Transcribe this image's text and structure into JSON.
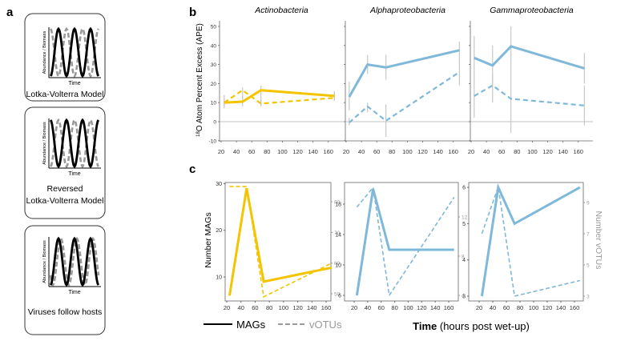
{
  "panel_labels": {
    "a": "a",
    "b": "b",
    "c": "c"
  },
  "colors": {
    "actino": "#F5C400",
    "proteo": "#7FB8D9",
    "error": "#C8C8C8",
    "axis": "#555555",
    "right_axis": "#999999"
  },
  "panel_a": {
    "boxes": [
      {
        "caption": [
          "Lotka-Volterra Model"
        ],
        "solid_phase": 0,
        "dashed_phase": 0.5
      },
      {
        "caption": [
          "Reversed",
          "Lotka-Volterra Model"
        ],
        "solid_phase": 0.5,
        "dashed_phase": 0
      },
      {
        "caption": [
          "Viruses follow hosts"
        ],
        "solid_phase": 0,
        "dashed_phase": 0.15
      }
    ],
    "ylabel": "Abundance / Biomass",
    "xlabel": "Time"
  },
  "chart_data": [
    {
      "id": "b",
      "type": "line",
      "ylabel": "18O Atom Percent Excess (APE)",
      "ylabel_sup": "18",
      "ylabel_rest": "O Atom Percent Excess (APE)",
      "ylim": [
        -10,
        52
      ],
      "yticks": [
        -10,
        0,
        10,
        20,
        30,
        40,
        50
      ],
      "xlim": [
        18,
        178
      ],
      "xticks": [
        20,
        40,
        60,
        80,
        100,
        120,
        140,
        160
      ],
      "panels": [
        {
          "title": "Actinobacteria",
          "color": "actino",
          "series": [
            {
              "name": "MAGs",
              "style": "solid",
              "x": [
                24,
                48,
                72,
                168
              ],
              "y": [
                10,
                10.5,
                16.5,
                13.5
              ],
              "err_low": [
                7,
                8,
                8,
                11
              ],
              "err_high": [
                14,
                13,
                19,
                16
              ]
            },
            {
              "name": "vOTUs",
              "style": "dashed",
              "x": [
                24,
                48,
                72,
                168
              ],
              "y": [
                10,
                16.5,
                9.5,
                12.5
              ],
              "err_low": [
                8,
                12,
                8,
                11
              ],
              "err_high": [
                12,
                18,
                12,
                15
              ]
            }
          ]
        },
        {
          "title": "Alphaproteobacteria",
          "color": "proteo",
          "series": [
            {
              "name": "MAGs",
              "style": "solid",
              "x": [
                24,
                48,
                72,
                168
              ],
              "y": [
                13,
                30,
                28.5,
                37.5
              ],
              "err_low": [
                6,
                25,
                22,
                31
              ],
              "err_high": [
                21,
                35,
                35,
                42
              ]
            },
            {
              "name": "vOTUs",
              "style": "dashed",
              "x": [
                24,
                48,
                72,
                168
              ],
              "y": [
                -0.5,
                8,
                0.5,
                26
              ],
              "err_low": [
                -2,
                5,
                -8,
                19
              ],
              "err_high": [
                2,
                10,
                9,
                32
              ]
            }
          ]
        },
        {
          "title": "Gammaproteobacteria",
          "color": "proteo",
          "series": [
            {
              "name": "MAGs",
              "style": "solid",
              "x": [
                24,
                48,
                72,
                168
              ],
              "y": [
                33.5,
                29.5,
                39.5,
                28
              ],
              "err_low": [
                20,
                20,
                20,
                20
              ],
              "err_high": [
                45,
                40,
                50,
                36
              ]
            },
            {
              "name": "vOTUs",
              "style": "dashed",
              "x": [
                24,
                48,
                72,
                168
              ],
              "y": [
                13.5,
                19,
                12,
                8.5
              ],
              "err_low": [
                2,
                10,
                -6,
                -2
              ],
              "err_high": [
                20,
                25,
                20,
                19
              ]
            }
          ]
        }
      ]
    },
    {
      "id": "c",
      "type": "line",
      "ylabel_left": "Number MAGs",
      "ylabel_right": "Number vOTUs",
      "xlabel_bold": "Time",
      "xlabel_rest": " (hours post wet-up)",
      "xticks": [
        20,
        40,
        60,
        80,
        100,
        120,
        140,
        160
      ],
      "legend": [
        {
          "label": "MAGs",
          "style": "solid"
        },
        {
          "label": "vOTUs",
          "style": "dashed"
        }
      ],
      "panels": [
        {
          "color": "actino",
          "left_ticks": [
            10,
            20,
            30
          ],
          "right_ticks": [
            50,
            60,
            70,
            80
          ],
          "mags": {
            "x": [
              24,
              48,
              72,
              168
            ],
            "y": [
              6,
              29,
              9,
              12
            ]
          },
          "votus": {
            "x": [
              24,
              48,
              72,
              168
            ],
            "y": [
              85,
              85,
              49,
              60
            ]
          }
        },
        {
          "color": "proteo",
          "left_ticks": [
            6,
            10,
            14,
            18
          ],
          "right_ticks": [
            4,
            8,
            12
          ],
          "mags": {
            "x": [
              24,
              48,
              72,
              168
            ],
            "y": [
              6,
              20,
              12,
              12
            ]
          },
          "votus": {
            "x": [
              24,
              48,
              72,
              168
            ],
            "y": [
              13,
              15,
              4,
              14
            ]
          }
        },
        {
          "color": "proteo",
          "left_ticks": [
            3,
            4,
            5,
            6
          ],
          "right_ticks": [
            3,
            5,
            7,
            9
          ],
          "mags": {
            "x": [
              24,
              48,
              72,
              168
            ],
            "y": [
              3,
              6,
              5,
              6
            ]
          },
          "votus": {
            "x": [
              24,
              48,
              72,
              168
            ],
            "y": [
              7,
              10,
              3,
              4
            ]
          }
        }
      ]
    }
  ]
}
